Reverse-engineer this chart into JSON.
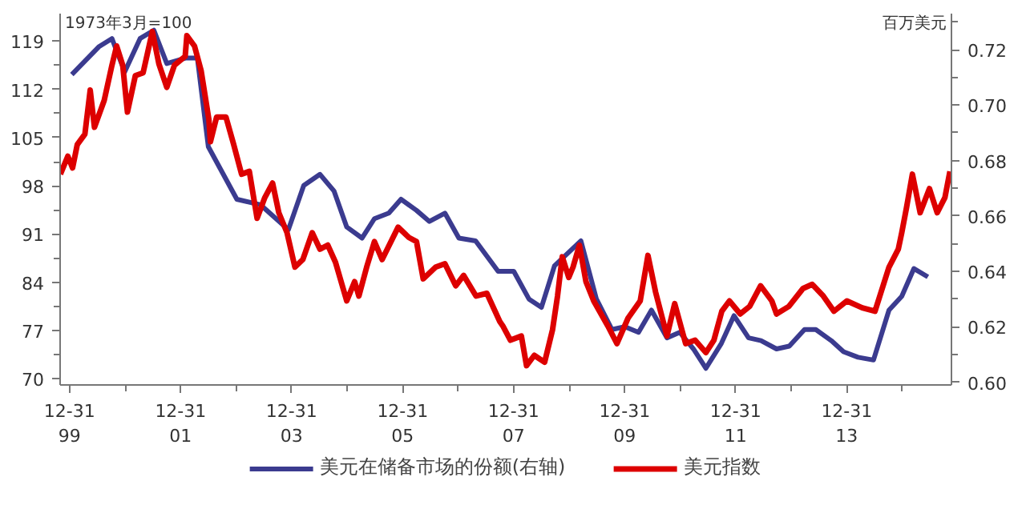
{
  "chart_data": {
    "type": "line",
    "ylabel": "1973年3月=100",
    "y2label": "百万美元",
    "xlim": [
      "1999-10-30",
      "2015-11-20"
    ],
    "xticks": [
      {
        "value": "1999-12-31",
        "label": "12-31\n99"
      },
      {
        "value": "2000-12-31",
        "label": null
      },
      {
        "value": "2001-12-31",
        "label": "12-31\n01"
      },
      {
        "value": "2002-12-31",
        "label": null
      },
      {
        "value": "2003-12-31",
        "label": "12-31\n03"
      },
      {
        "value": "2004-12-31",
        "label": null
      },
      {
        "value": "2005-12-31",
        "label": "12-31\n05"
      },
      {
        "value": "2006-12-31",
        "label": null
      },
      {
        "value": "2007-12-31",
        "label": "12-31\n07"
      },
      {
        "value": "2008-12-31",
        "label": null
      },
      {
        "value": "2009-12-31",
        "label": "12-31\n09"
      },
      {
        "value": "2010-12-31",
        "label": null
      },
      {
        "value": "2011-12-31",
        "label": "12-31\n11"
      },
      {
        "value": "2012-12-31",
        "label": null
      },
      {
        "value": "2013-12-31",
        "label": "12-31\n13"
      },
      {
        "value": "2014-12-31",
        "label": null
      }
    ],
    "ylim": [
      69.1,
      123
    ],
    "yticks": [
      70,
      {
        "value": 73.5,
        "label": null
      },
      77,
      {
        "value": 80.5,
        "label": null
      },
      84,
      {
        "value": 87.5,
        "label": null
      },
      91,
      {
        "value": 94.5,
        "label": null
      },
      98,
      {
        "value": 101.5,
        "label": null
      },
      105,
      {
        "value": 108.5,
        "label": null
      },
      112,
      {
        "value": 115.5,
        "label": null
      },
      119
    ],
    "y2lim": [
      0.599,
      0.733
    ],
    "y2ticks": [
      {
        "value": 0.6,
        "label": "0.60"
      },
      {
        "value": 0.61,
        "label": null
      },
      {
        "value": 0.62,
        "label": "0.62"
      },
      {
        "value": 0.63,
        "label": null
      },
      {
        "value": 0.64,
        "label": "0.64"
      },
      {
        "value": 0.65,
        "label": null
      },
      {
        "value": 0.66,
        "label": "0.66"
      },
      {
        "value": 0.67,
        "label": null
      },
      {
        "value": 0.68,
        "label": "0.68"
      },
      {
        "value": 0.69,
        "label": null
      },
      {
        "value": 0.7,
        "label": "0.70"
      },
      {
        "value": 0.71,
        "label": null
      },
      {
        "value": 0.72,
        "label": "0.72"
      },
      {
        "value": 0.73,
        "label": null
      }
    ],
    "grid": false,
    "legend": "bottom",
    "marker": "none",
    "line_style": "solid",
    "series": [
      {
        "name": "美元在储备市场的份额(右轴)",
        "color": "#3b3b8f",
        "axis": "y2",
        "x": [
          "2000-01-15",
          "2000-07-10",
          "2000-10-05",
          "2000-12-28",
          "2001-04-08",
          "2001-07-08",
          "2001-10-01",
          "2002-02-05",
          "2002-04-20",
          "2002-07-01",
          "2003-01-05",
          "2003-06-10",
          "2003-12-10",
          "2004-03-20",
          "2004-07-05",
          "2004-10-05",
          "2004-12-28",
          "2005-04-08",
          "2005-06-28",
          "2005-10-01",
          "2005-12-20",
          "2006-04-01",
          "2006-06-25",
          "2006-10-05",
          "2007-01-05",
          "2007-04-25",
          "2007-09-20",
          "2008-01-01",
          "2008-04-10",
          "2008-07-01",
          "2008-09-25",
          "2009-03-18",
          "2009-06-28",
          "2009-10-08",
          "2010-01-01",
          "2010-04-01",
          "2010-06-25",
          "2010-10-05",
          "2010-12-28",
          "2011-03-28",
          "2011-06-18",
          "2011-09-28",
          "2011-12-20",
          "2012-03-25",
          "2012-06-15",
          "2012-09-25",
          "2012-12-18",
          "2013-03-28",
          "2013-06-10",
          "2013-09-20",
          "2013-12-10",
          "2014-03-15",
          "2014-06-25",
          "2014-10-05",
          "2014-12-28",
          "2015-03-18",
          "2015-06-18"
        ],
        "values": [
          0.711,
          0.721,
          0.724,
          0.712,
          0.724,
          0.727,
          0.715,
          0.717,
          0.717,
          0.685,
          0.666,
          0.664,
          0.655,
          0.671,
          0.675,
          0.669,
          0.656,
          0.652,
          0.659,
          0.661,
          0.666,
          0.662,
          0.658,
          0.661,
          0.652,
          0.651,
          0.64,
          0.64,
          0.63,
          0.627,
          0.642,
          0.651,
          0.63,
          0.619,
          0.62,
          0.618,
          0.626,
          0.616,
          0.618,
          0.612,
          0.605,
          0.614,
          0.624,
          0.616,
          0.615,
          0.612,
          0.613,
          0.619,
          0.619,
          0.615,
          0.611,
          0.609,
          0.608,
          0.626,
          0.631,
          0.641,
          0.638
        ]
      },
      {
        "name": "美元指数",
        "color": "#dd0000",
        "x": [
          "1999-11-01",
          "1999-12-20",
          "2000-01-20",
          "2000-02-20",
          "2000-04-10",
          "2000-05-15",
          "2000-06-12",
          "2000-08-15",
          "2000-10-05",
          "2000-11-05",
          "2000-12-15",
          "2001-01-15",
          "2001-03-08",
          "2001-04-28",
          "2001-06-28",
          "2001-08-10",
          "2001-10-01",
          "2001-11-20",
          "2002-01-30",
          "2002-02-10",
          "2002-04-01",
          "2002-05-15",
          "2002-07-05",
          "2002-07-15",
          "2002-08-25",
          "2002-10-25",
          "2002-12-15",
          "2003-02-05",
          "2003-03-28",
          "2003-05-18",
          "2003-07-08",
          "2003-08-28",
          "2003-10-08",
          "2003-12-01",
          "2004-01-22",
          "2004-03-14",
          "2004-05-15",
          "2004-07-05",
          "2004-08-25",
          "2004-10-15",
          "2004-12-28",
          "2005-02-18",
          "2005-03-18",
          "2005-05-08",
          "2005-06-28",
          "2005-08-18",
          "2005-12-01",
          "2006-02-10",
          "2006-04-01",
          "2006-05-15",
          "2006-08-05",
          "2006-10-05",
          "2006-12-15",
          "2007-02-05",
          "2007-04-28",
          "2007-07-08",
          "2007-10-01",
          "2007-10-20",
          "2007-12-10",
          "2008-02-20",
          "2008-03-25",
          "2008-05-15",
          "2008-07-22",
          "2008-09-12",
          "2008-10-15",
          "2008-11-15",
          "2008-12-28",
          "2009-01-25",
          "2009-03-08",
          "2009-04-20",
          "2009-06-10",
          "2009-09-10",
          "2009-11-10",
          "2010-01-22",
          "2010-04-12",
          "2010-06-02",
          "2010-07-22",
          "2010-10-05",
          "2010-11-25",
          "2011-02-05",
          "2011-04-08",
          "2011-06-18",
          "2011-08-10",
          "2011-10-01",
          "2011-11-20",
          "2012-01-30",
          "2012-04-01",
          "2012-06-12",
          "2012-08-25",
          "2012-09-25",
          "2012-12-15",
          "2013-03-18",
          "2013-05-18",
          "2013-07-30",
          "2013-10-08",
          "2014-01-01",
          "2014-04-12",
          "2014-07-05",
          "2014-10-05",
          "2014-12-05",
          "2014-12-28",
          "2015-01-28",
          "2015-03-08",
          "2015-04-28",
          "2015-06-28",
          "2015-08-18",
          "2015-10-08",
          "2015-11-10"
        ],
        "values": [
          99.7,
          102.3,
          100.6,
          104.0,
          105.5,
          111.9,
          106.5,
          110.4,
          115.5,
          118.3,
          115.5,
          108.7,
          114.0,
          114.4,
          120.4,
          115.7,
          112.3,
          115.5,
          116.8,
          119.8,
          118.3,
          114.7,
          107.6,
          104.4,
          108.0,
          108.0,
          104.0,
          99.7,
          100.1,
          93.3,
          96.3,
          98.4,
          94.1,
          91.2,
          86.2,
          87.3,
          91.2,
          88.8,
          89.4,
          86.9,
          81.3,
          84.1,
          82.0,
          86.2,
          89.9,
          87.3,
          92.0,
          90.5,
          89.9,
          84.5,
          86.2,
          86.7,
          83.5,
          85.0,
          82.0,
          82.4,
          78.3,
          77.7,
          75.6,
          76.2,
          71.9,
          73.4,
          72.4,
          77.1,
          82.0,
          87.7,
          84.7,
          86.2,
          89.4,
          84.1,
          81.3,
          77.7,
          75.1,
          78.8,
          81.3,
          87.9,
          82.6,
          76.2,
          80.9,
          75.1,
          75.6,
          73.8,
          75.6,
          79.8,
          81.3,
          79.4,
          80.5,
          83.5,
          81.3,
          79.4,
          80.5,
          83.1,
          83.7,
          82.0,
          79.8,
          81.3,
          80.3,
          79.8,
          86.2,
          88.8,
          91.2,
          94.8,
          99.7,
          94.1,
          97.6,
          94.1,
          96.3,
          100.1
        ]
      }
    ]
  }
}
